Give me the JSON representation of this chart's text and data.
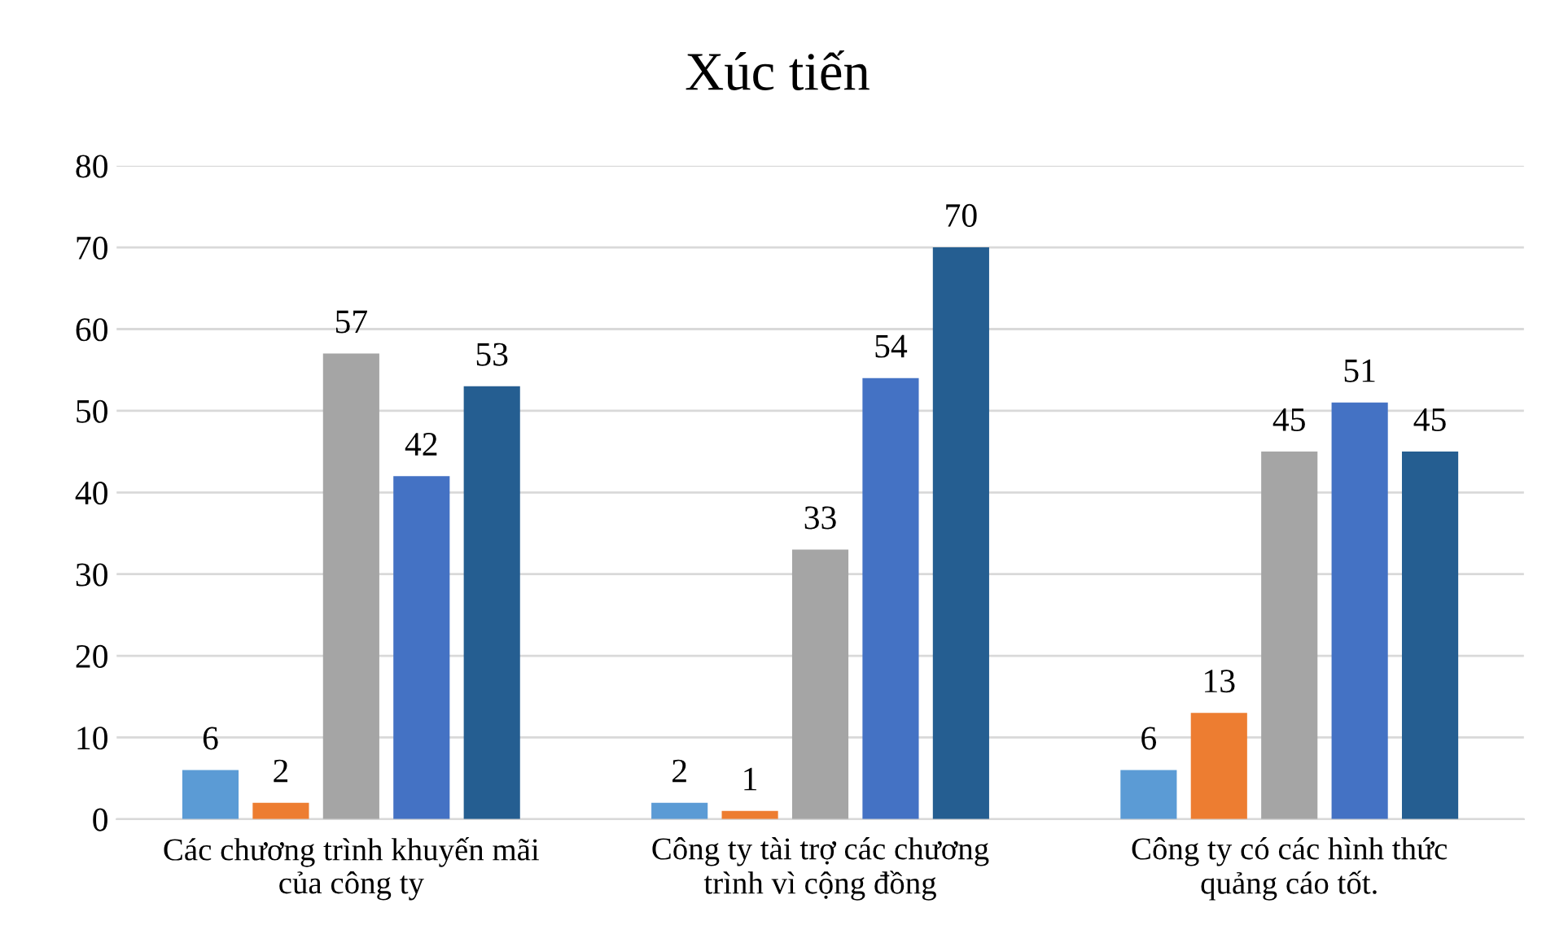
{
  "chart_data": {
    "type": "bar",
    "title": "Xúc tiến",
    "categories": [
      "Các chương trình khuyến mãi\ncủa công ty",
      "Công ty tài trợ các chương\ntrình vì cộng đồng",
      "Công ty có các hình thức\nquảng cáo tốt."
    ],
    "series": [
      {
        "color": "#5b9bd5",
        "values": [
          6,
          2,
          6
        ]
      },
      {
        "color": "#ed7d31",
        "values": [
          2,
          1,
          13
        ]
      },
      {
        "color": "#a5a5a5",
        "values": [
          57,
          33,
          45
        ]
      },
      {
        "color": "#4472c4",
        "values": [
          42,
          54,
          51
        ]
      },
      {
        "color": "#255e91",
        "values": [
          53,
          70,
          45
        ]
      }
    ],
    "ylim": [
      0,
      80
    ],
    "yticks": [
      0,
      10,
      20,
      30,
      40,
      50,
      60,
      70,
      80
    ],
    "grid": "y",
    "data_labels": true,
    "legend": false
  }
}
